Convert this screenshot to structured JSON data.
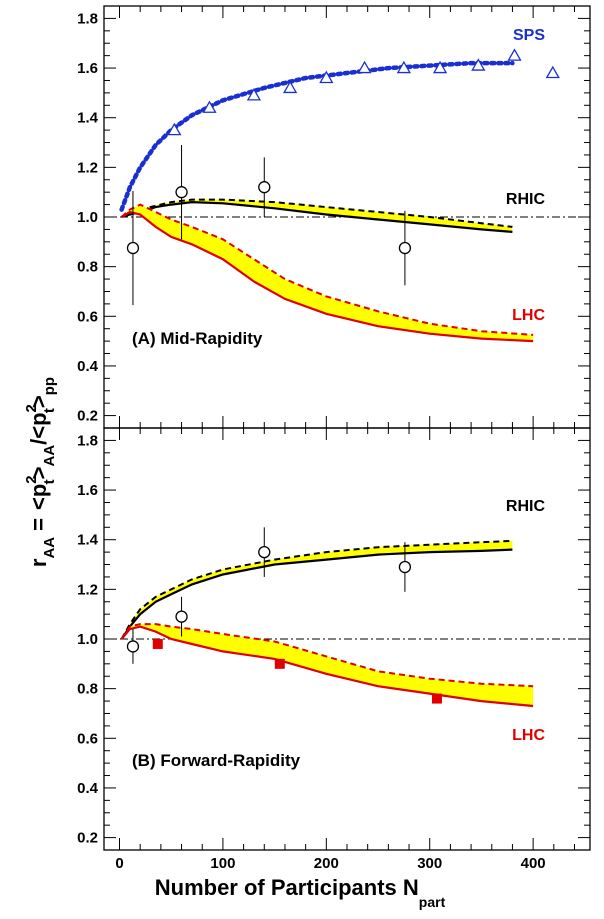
{
  "chart_data": {
    "type": "line",
    "shared": {
      "xlabel_main": "Number of Participants N",
      "xlabel_sub": "part",
      "ylabel": "r",
      "ylabel_sub": "AA",
      "ylabel_equals": "=",
      "ylabel_ratio_num": "<p",
      "ylabel_ratio_sup1": "2",
      "ylabel_ratio_sub1": "t",
      "ylabel_ratio_mid": ">",
      "ylabel_ratio_subaa": "AA",
      "ylabel_ratio_den": "/<p",
      "ylabel_ratio_sup2": "2",
      "ylabel_ratio_sub2": "t",
      "ylabel_ratio_end": ">",
      "ylabel_ratio_subpp": "pp",
      "xlim": [
        -15,
        455
      ],
      "xticks": [
        0,
        100,
        200,
        300,
        400
      ]
    },
    "panels": [
      {
        "title": "(A) Mid-Rapidity",
        "ylim": [
          0.15,
          1.85
        ],
        "yticks": [
          0.2,
          0.4,
          0.6,
          0.8,
          1.0,
          1.2,
          1.4,
          1.6,
          1.8
        ],
        "ytick_labels": [
          "0.2",
          "0.4",
          "0.6",
          "0.8",
          "1.0",
          "1.2",
          "1.4",
          "1.6",
          "1.8"
        ],
        "reference_line": 1.0,
        "series": [
          {
            "name": "SPS",
            "color": "#1a2fd0",
            "style": "dotted",
            "curve": {
              "x": [
                2,
                10,
                20,
                35,
                50,
                70,
                100,
                140,
                180,
                220,
                260,
                300,
                340,
                380
              ],
              "y": [
                1.03,
                1.12,
                1.2,
                1.29,
                1.35,
                1.41,
                1.47,
                1.52,
                1.56,
                1.58,
                1.6,
                1.61,
                1.62,
                1.62
              ]
            },
            "markers": {
              "symbol": "open-triangle",
              "x": [
                53,
                87,
                130,
                165,
                200,
                237,
                275,
                310,
                347,
                382,
                419
              ],
              "y": [
                1.35,
                1.44,
                1.49,
                1.52,
                1.56,
                1.6,
                1.6,
                1.6,
                1.61,
                1.65,
                1.58
              ]
            }
          },
          {
            "name": "RHIC",
            "color": "#000000",
            "band": {
              "fill": "#ffff00",
              "x": [
                2,
                10,
                20,
                35,
                50,
                70,
                100,
                150,
                200,
                250,
                300,
                350,
                380
              ],
              "lower": [
                1.0,
                1.01,
                1.02,
                1.04,
                1.05,
                1.06,
                1.055,
                1.035,
                1.01,
                0.99,
                0.97,
                0.95,
                0.94
              ],
              "upper": [
                1.0,
                1.02,
                1.03,
                1.045,
                1.06,
                1.07,
                1.07,
                1.06,
                1.04,
                1.02,
                1.0,
                0.975,
                0.96
              ]
            }
          },
          {
            "name": "LHC",
            "color": "#e00000",
            "band": {
              "fill": "#ffff00",
              "x": [
                2,
                10,
                20,
                35,
                50,
                70,
                100,
                130,
                160,
                200,
                250,
                300,
                350,
                400
              ],
              "lower": [
                1.0,
                1.02,
                1.01,
                0.96,
                0.92,
                0.89,
                0.83,
                0.74,
                0.67,
                0.61,
                0.56,
                0.53,
                0.51,
                0.5
              ],
              "upper": [
                1.0,
                1.03,
                1.05,
                1.02,
                0.99,
                0.96,
                0.91,
                0.83,
                0.75,
                0.68,
                0.62,
                0.57,
                0.54,
                0.525
              ]
            }
          },
          {
            "name": "data",
            "color": "#000000",
            "markers": {
              "symbol": "open-circle",
              "x": [
                13,
                60,
                140,
                276
              ],
              "y": [
                0.875,
                1.1,
                1.12,
                0.875
              ],
              "yerr": [
                0.23,
                0.19,
                0.12,
                0.15
              ]
            }
          }
        ]
      },
      {
        "title": "(B) Forward-Rapidity",
        "ylim": [
          0.15,
          1.85
        ],
        "yticks": [
          0.2,
          0.4,
          0.6,
          0.8,
          1.0,
          1.2,
          1.4,
          1.6,
          1.8
        ],
        "ytick_labels": [
          "0.2",
          "0.4",
          "0.6",
          "0.8",
          "1.0",
          "1.2",
          "1.4",
          "1.6",
          "1.8"
        ],
        "reference_line": 1.0,
        "series": [
          {
            "name": "RHIC",
            "color": "#000000",
            "band": {
              "fill": "#ffff00",
              "x": [
                2,
                10,
                20,
                35,
                50,
                70,
                100,
                150,
                200,
                250,
                300,
                350,
                380
              ],
              "lower": [
                1.0,
                1.05,
                1.1,
                1.15,
                1.18,
                1.22,
                1.26,
                1.3,
                1.32,
                1.34,
                1.35,
                1.355,
                1.36
              ],
              "upper": [
                1.0,
                1.06,
                1.12,
                1.17,
                1.2,
                1.24,
                1.28,
                1.32,
                1.35,
                1.37,
                1.38,
                1.39,
                1.395
              ]
            }
          },
          {
            "name": "LHC",
            "color": "#e00000",
            "band": {
              "fill": "#ffff00",
              "x": [
                2,
                10,
                20,
                35,
                50,
                70,
                100,
                150,
                200,
                250,
                300,
                350,
                400
              ],
              "lower": [
                1.0,
                1.04,
                1.05,
                1.03,
                1.0,
                0.98,
                0.95,
                0.92,
                0.86,
                0.81,
                0.78,
                0.75,
                0.73
              ],
              "upper": [
                1.0,
                1.05,
                1.06,
                1.06,
                1.05,
                1.04,
                1.02,
                0.99,
                0.93,
                0.87,
                0.84,
                0.82,
                0.81
              ]
            }
          },
          {
            "name": "data",
            "color": "#000000",
            "markers": {
              "symbol": "open-circle",
              "x": [
                13,
                60,
                140,
                276
              ],
              "y": [
                0.97,
                1.09,
                1.35,
                1.29
              ],
              "yerr": [
                0.07,
                0.08,
                0.1,
                0.1
              ]
            }
          },
          {
            "name": "LHC data",
            "color": "#e00000",
            "markers": {
              "symbol": "filled-square",
              "x": [
                37,
                155,
                307
              ],
              "y": [
                0.98,
                0.9,
                0.76
              ]
            }
          }
        ]
      }
    ]
  }
}
